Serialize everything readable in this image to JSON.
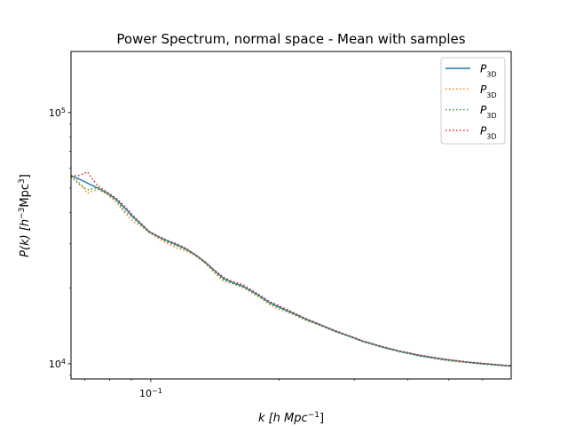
{
  "chart_data": {
    "type": "line",
    "title": "Power Spectrum, normal space - Mean with samples",
    "xlabel": {
      "base": "k [h Mpc",
      "sup": "−1",
      "tail": "]"
    },
    "ylabel": {
      "base": "P(k) [h",
      "sup1": "−3",
      "mid": "Mpc",
      "sup2": "3",
      "tail": "]"
    },
    "x_scale": "log",
    "y_scale": "log",
    "xlim": [
      0.065,
      0.7
    ],
    "ylim": [
      8700,
      175000
    ],
    "x_ticks": [
      {
        "value": 0.1,
        "base": "10",
        "exp": "−1"
      }
    ],
    "y_ticks": [
      {
        "value": 10000,
        "base": "10",
        "exp": "4"
      },
      {
        "value": 100000,
        "base": "10",
        "exp": "5"
      }
    ],
    "grid": false,
    "legend_position": "top-right",
    "series": [
      {
        "name": "P3D",
        "label_main": "P",
        "label_sub": "3D",
        "color": "#1f77b4",
        "style": "solid",
        "x": [
          0.065,
          0.068,
          0.071,
          0.075,
          0.079,
          0.083,
          0.087,
          0.091,
          0.095,
          0.099,
          0.104,
          0.109,
          0.115,
          0.121,
          0.127,
          0.134,
          0.141,
          0.148,
          0.156,
          0.164,
          0.172,
          0.181,
          0.19,
          0.2,
          0.21,
          0.221,
          0.232,
          0.244,
          0.257,
          0.27,
          0.284,
          0.299,
          0.314,
          0.33,
          0.347,
          0.365,
          0.384,
          0.404,
          0.425,
          0.447,
          0.47,
          0.494,
          0.52,
          0.547,
          0.575,
          0.605,
          0.636,
          0.669,
          0.7
        ],
        "y": [
          56000,
          54300,
          52400,
          50100,
          47800,
          45100,
          41600,
          38400,
          35900,
          33600,
          32100,
          30900,
          29800,
          28600,
          27200,
          25400,
          23500,
          21900,
          21000,
          20400,
          19500,
          18500,
          17500,
          16800,
          16200,
          15600,
          15000,
          14500,
          14000,
          13500,
          13100,
          12700,
          12300,
          12000,
          11700,
          11450,
          11200,
          11000,
          10800,
          10650,
          10500,
          10380,
          10270,
          10170,
          10080,
          10000,
          9930,
          9860,
          9800
        ]
      },
      {
        "name": "P3D",
        "label_main": "P",
        "label_sub": "3D",
        "color": "#ff7f0e",
        "style": "dotted",
        "x": [
          0.065,
          0.068,
          0.071,
          0.075,
          0.079,
          0.083,
          0.087,
          0.091,
          0.095,
          0.099,
          0.104,
          0.109,
          0.115,
          0.121,
          0.127,
          0.134,
          0.141,
          0.148,
          0.156,
          0.164,
          0.172,
          0.181,
          0.19,
          0.2,
          0.21,
          0.221,
          0.232,
          0.244,
          0.257,
          0.27,
          0.284,
          0.299,
          0.314,
          0.33,
          0.347,
          0.365,
          0.384,
          0.404,
          0.425,
          0.447,
          0.47,
          0.494,
          0.52,
          0.547,
          0.575,
          0.605,
          0.636,
          0.669,
          0.7
        ],
        "y": [
          56500,
          52500,
          47800,
          49500,
          47200,
          44000,
          39800,
          36800,
          35300,
          33300,
          31600,
          30200,
          28900,
          28100,
          27000,
          25100,
          23000,
          21300,
          20800,
          20100,
          19200,
          18200,
          17200,
          16500,
          16000,
          15400,
          14850,
          14400,
          13900,
          13450,
          13050,
          12650,
          12250,
          11950,
          11650,
          11400,
          11150,
          10950,
          10750,
          10600,
          10450,
          10340,
          10230,
          10130,
          10050,
          9970,
          9900,
          9830,
          9780
        ]
      },
      {
        "name": "P3D",
        "label_main": "P",
        "label_sub": "3D",
        "color": "#2ca02c",
        "style": "dotted",
        "x": [
          0.065,
          0.068,
          0.071,
          0.075,
          0.079,
          0.083,
          0.087,
          0.091,
          0.095,
          0.099,
          0.104,
          0.109,
          0.115,
          0.121,
          0.127,
          0.134,
          0.141,
          0.148,
          0.156,
          0.164,
          0.172,
          0.181,
          0.19,
          0.2,
          0.21,
          0.221,
          0.232,
          0.244,
          0.257,
          0.27,
          0.284,
          0.299,
          0.314,
          0.33,
          0.347,
          0.365,
          0.384,
          0.404,
          0.425,
          0.447,
          0.47,
          0.494,
          0.52,
          0.547,
          0.575,
          0.605,
          0.636,
          0.669,
          0.7
        ],
        "y": [
          55500,
          51800,
          49200,
          50300,
          47600,
          44700,
          40500,
          38000,
          35500,
          33400,
          31900,
          30600,
          29500,
          28400,
          27100,
          25300,
          23300,
          21600,
          20900,
          20300,
          19400,
          18400,
          17400,
          16700,
          16100,
          15500,
          14900,
          14450,
          13950,
          13450,
          13050,
          12650,
          12250,
          11950,
          11650,
          11400,
          11150,
          10950,
          10750,
          10600,
          10450,
          10300,
          10200,
          10120,
          10030,
          9950,
          9880,
          9820,
          9760
        ]
      },
      {
        "name": "P3D",
        "label_main": "P",
        "label_sub": "3D",
        "color": "#d62728",
        "style": "dotted",
        "x": [
          0.065,
          0.068,
          0.071,
          0.075,
          0.079,
          0.083,
          0.087,
          0.091,
          0.095,
          0.099,
          0.104,
          0.109,
          0.115,
          0.121,
          0.127,
          0.134,
          0.141,
          0.148,
          0.156,
          0.164,
          0.172,
          0.181,
          0.19,
          0.2,
          0.21,
          0.221,
          0.232,
          0.244,
          0.257,
          0.27,
          0.284,
          0.299,
          0.314,
          0.33,
          0.347,
          0.365,
          0.384,
          0.404,
          0.425,
          0.447,
          0.47,
          0.494,
          0.52,
          0.547,
          0.575,
          0.605,
          0.636,
          0.669,
          0.7
        ],
        "y": [
          55800,
          56200,
          58000,
          51200,
          48300,
          45600,
          42300,
          38800,
          36200,
          33700,
          32200,
          31100,
          30000,
          28800,
          27300,
          25500,
          23600,
          22100,
          21200,
          20700,
          19700,
          18700,
          17700,
          17000,
          16400,
          15700,
          15100,
          14600,
          14050,
          13600,
          13150,
          12750,
          12350,
          12050,
          11750,
          11500,
          11250,
          11050,
          10850,
          10700,
          10550,
          10420,
          10300,
          10200,
          10110,
          10030,
          9960,
          9890,
          9830
        ]
      }
    ]
  }
}
